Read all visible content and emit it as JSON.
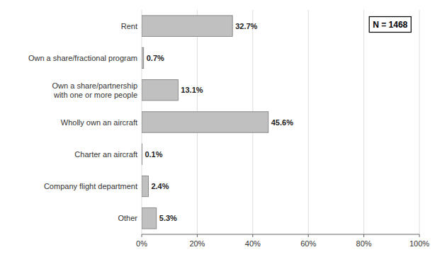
{
  "chart_data": {
    "type": "bar",
    "orientation": "horizontal",
    "categories": [
      "Other",
      "Company flight department",
      "Charter an aircraft",
      "Wholly own an aircraft",
      "Own a share/partnership\nwith one or more people",
      "Own a share/fractional program",
      "Rent"
    ],
    "values": [
      5.3,
      2.4,
      0.1,
      45.6,
      13.1,
      0.7,
      32.7
    ],
    "value_labels": [
      "5.3%",
      "2.4%",
      "0.1%",
      "45.6%",
      "13.1%",
      "0.7%",
      "32.7%"
    ],
    "data_labels": true,
    "color": "#c0c0c0",
    "xlim": [
      0,
      100
    ],
    "xticks": [
      {
        "value": 0,
        "label": "0%"
      },
      {
        "value": 20,
        "label": "20%"
      },
      {
        "value": 40,
        "label": "40%"
      },
      {
        "value": 60,
        "label": "60%"
      },
      {
        "value": 80,
        "label": "80%"
      },
      {
        "value": 100,
        "label": "100%"
      }
    ],
    "grid": true,
    "annotations": [
      "N = 1468"
    ]
  }
}
